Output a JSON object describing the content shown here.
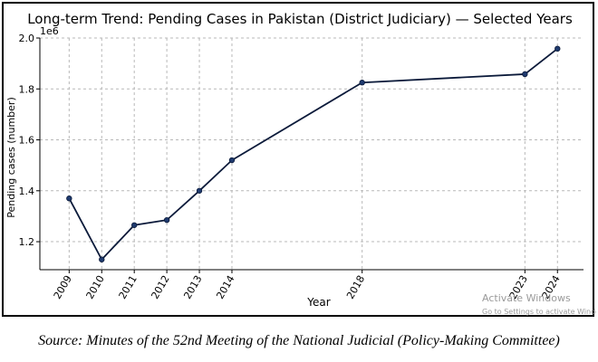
{
  "chart_data": {
    "type": "line",
    "title": "Long-term Trend: Pending Cases in Pakistan (District Judiciary) — Selected Years",
    "xlabel": "Year",
    "ylabel": "Pending cases (number)",
    "y_offset_label": "1e6",
    "x": [
      2009,
      2010,
      2011,
      2012,
      2013,
      2014,
      2018,
      2023,
      2024
    ],
    "y": [
      1370000,
      1130000,
      1265000,
      1285000,
      1400000,
      1520000,
      1825000,
      1858000,
      1958000
    ],
    "xticks": [
      "2009",
      "2010",
      "2011",
      "2012",
      "2013",
      "2014",
      "2018",
      "2023",
      "2024"
    ],
    "yticks": [
      "1.2",
      "1.4",
      "1.6",
      "1.8",
      "2.0"
    ],
    "ytick_values": [
      1200000,
      1400000,
      1600000,
      1800000,
      2000000
    ],
    "xlim": [
      2008.1,
      2024.8
    ],
    "ylim": [
      1090000,
      2000000
    ],
    "grid": true,
    "line_color": "#0b1a3a",
    "marker_color": "#1f3a6e"
  },
  "watermark": {
    "line1": "Activate Windows",
    "line2": "Go to Settings to activate Windows."
  },
  "source": "Source: Minutes of the 52nd Meeting of the National Judicial (Policy-Making Committee)"
}
